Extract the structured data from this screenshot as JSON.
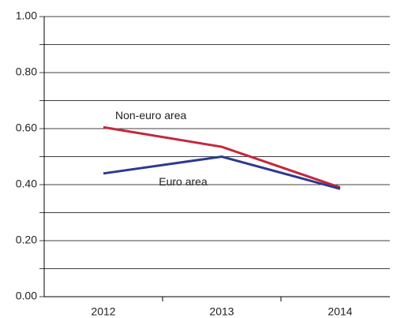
{
  "chart_data": {
    "type": "line",
    "categories": [
      "2012",
      "2013",
      "2014"
    ],
    "series": [
      {
        "name": "Non-euro area",
        "color": "#c3283c",
        "values": [
          0.605,
          0.535,
          0.39
        ]
      },
      {
        "name": "Euro area",
        "color": "#2e3a8f",
        "values": [
          0.44,
          0.5,
          0.385
        ]
      }
    ],
    "ylim": [
      0,
      1
    ],
    "yticks": [
      {
        "value": 0,
        "label": "0.00"
      },
      {
        "value": 0.2,
        "label": "0.20"
      },
      {
        "value": 0.4,
        "label": "0.40"
      },
      {
        "value": 0.6,
        "label": "0.60"
      },
      {
        "value": 0.8,
        "label": "0.80"
      },
      {
        "value": 1,
        "label": "1.00"
      }
    ],
    "minor_yticks": [
      0.1,
      0.3,
      0.5,
      0.7,
      0.9
    ],
    "grid": true
  }
}
